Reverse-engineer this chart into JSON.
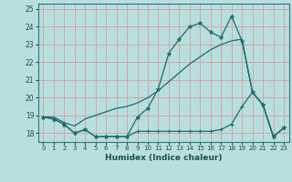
{
  "xlabel": "Humidex (Indice chaleur)",
  "xlim": [
    -0.5,
    23.5
  ],
  "ylim": [
    17.5,
    25.3
  ],
  "yticks": [
    18,
    19,
    20,
    21,
    22,
    23,
    24,
    25
  ],
  "xticks": [
    0,
    1,
    2,
    3,
    4,
    5,
    6,
    7,
    8,
    9,
    10,
    11,
    12,
    13,
    14,
    15,
    16,
    17,
    18,
    19,
    20,
    21,
    22,
    23
  ],
  "bg_color": "#b8dede",
  "grid_color": "#d4a0a0",
  "line_color": "#1a6e6e",
  "line1_x": [
    0,
    1,
    2,
    3,
    4,
    5,
    6,
    7,
    8,
    9,
    10,
    11,
    12,
    13,
    14,
    15,
    16,
    17,
    18,
    19,
    20,
    21,
    22,
    23
  ],
  "line1_y": [
    18.9,
    18.8,
    18.5,
    18.0,
    18.2,
    17.8,
    17.8,
    17.8,
    17.8,
    18.9,
    19.4,
    20.5,
    22.5,
    23.3,
    24.0,
    24.2,
    23.7,
    23.4,
    24.6,
    23.2,
    20.3,
    19.6,
    17.8,
    18.3
  ],
  "line2_x": [
    0,
    1,
    2,
    3,
    4,
    5,
    6,
    7,
    8,
    9,
    10,
    11,
    12,
    13,
    14,
    15,
    16,
    17,
    18,
    19,
    20,
    21,
    22,
    23
  ],
  "line2_y": [
    18.9,
    18.9,
    18.6,
    18.4,
    18.8,
    19.0,
    19.2,
    19.4,
    19.5,
    19.7,
    20.0,
    20.4,
    20.9,
    21.4,
    21.9,
    22.3,
    22.7,
    23.0,
    23.2,
    23.3,
    20.3,
    19.6,
    17.8,
    18.3
  ],
  "line3_x": [
    0,
    1,
    2,
    3,
    4,
    5,
    6,
    7,
    8,
    9,
    10,
    11,
    12,
    13,
    14,
    15,
    16,
    17,
    18,
    19,
    20,
    21,
    22,
    23
  ],
  "line3_y": [
    18.9,
    18.8,
    18.5,
    18.0,
    18.2,
    17.8,
    17.8,
    17.8,
    17.8,
    18.1,
    18.1,
    18.1,
    18.1,
    18.1,
    18.1,
    18.1,
    18.1,
    18.2,
    18.5,
    19.5,
    20.3,
    19.6,
    17.8,
    18.3
  ]
}
